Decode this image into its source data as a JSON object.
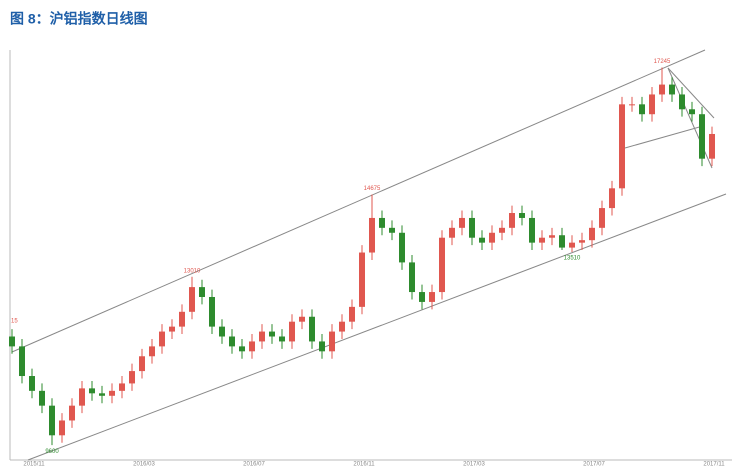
{
  "chart_data": {
    "type": "candlestick",
    "title": "图 8：沪铝指数日线图",
    "categories": [
      null,
      null,
      "2015/11",
      null,
      null,
      null,
      null,
      null,
      null,
      null,
      null,
      null,
      null,
      "2016/03",
      null,
      null,
      null,
      null,
      null,
      null,
      null,
      null,
      null,
      null,
      "2016/07",
      null,
      null,
      null,
      null,
      null,
      null,
      null,
      null,
      null,
      null,
      "2016/11",
      null,
      null,
      null,
      null,
      null,
      null,
      null,
      null,
      null,
      null,
      "2017/03",
      null,
      null,
      null,
      null,
      null,
      null,
      null,
      null,
      null,
      null,
      null,
      "2017/07",
      null,
      null,
      null,
      null,
      null,
      null,
      null,
      null,
      null,
      null,
      null,
      "2017/11"
    ],
    "open": [
      11800,
      11600,
      11000,
      10700,
      10400,
      9800,
      10100,
      10400,
      10750,
      10650,
      10600,
      10700,
      10850,
      11100,
      11400,
      11600,
      11900,
      12000,
      12300,
      12800,
      12600,
      12000,
      11800,
      11600,
      11500,
      11700,
      11900,
      11800,
      11700,
      12100,
      12200,
      11700,
      11500,
      11900,
      12100,
      12400,
      13500,
      14200,
      14000,
      13900,
      13300,
      12700,
      12500,
      12700,
      13800,
      14000,
      14200,
      13800,
      13700,
      13900,
      14000,
      14300,
      14200,
      13700,
      13800,
      13850,
      13600,
      13700,
      13750,
      14000,
      14400,
      14800,
      16500,
      16500,
      16300,
      16700,
      16900,
      16700,
      16400,
      16300,
      15400
    ],
    "high": [
      11950,
      11750,
      11150,
      10850,
      10550,
      10250,
      10550,
      10900,
      10900,
      10800,
      10850,
      11000,
      11250,
      11550,
      11750,
      12050,
      12150,
      12450,
      13010,
      12950,
      12750,
      12150,
      11950,
      11750,
      11850,
      12050,
      12050,
      11950,
      12250,
      12350,
      12350,
      11850,
      12050,
      12250,
      12550,
      13650,
      14675,
      14350,
      14150,
      14050,
      13450,
      12850,
      12850,
      13950,
      14150,
      14350,
      14350,
      13950,
      14050,
      14150,
      14450,
      14450,
      14350,
      13950,
      14000,
      14000,
      13850,
      13900,
      14150,
      14550,
      14950,
      16650,
      16650,
      16650,
      16850,
      17245,
      17050,
      16850,
      16550,
      16450,
      16050
    ],
    "low": [
      11450,
      10850,
      10550,
      10250,
      9600,
      9650,
      9950,
      10250,
      10500,
      10450,
      10450,
      10550,
      10700,
      10950,
      11250,
      11450,
      11750,
      11850,
      12150,
      12450,
      11850,
      11650,
      11450,
      11350,
      11350,
      11550,
      11650,
      11550,
      11550,
      11950,
      11550,
      11350,
      11350,
      11750,
      11950,
      12250,
      13350,
      13850,
      13750,
      13150,
      12550,
      12350,
      12350,
      12550,
      13650,
      13850,
      13650,
      13550,
      13550,
      13750,
      13850,
      14050,
      13550,
      13550,
      13650,
      13550,
      13510,
      13550,
      13600,
      13850,
      14250,
      14650,
      16350,
      16150,
      16150,
      16550,
      16550,
      16250,
      16150,
      15250,
      15250
    ],
    "close": [
      11600,
      11000,
      10700,
      10400,
      9800,
      10100,
      10400,
      10750,
      10650,
      10600,
      10700,
      10850,
      11100,
      11400,
      11600,
      11900,
      12000,
      12300,
      12800,
      12600,
      12000,
      11800,
      11600,
      11500,
      11700,
      11900,
      11800,
      11700,
      12100,
      12200,
      11700,
      11500,
      11900,
      12100,
      12400,
      13500,
      14200,
      14000,
      13900,
      13300,
      12700,
      12500,
      12700,
      13800,
      14000,
      14200,
      13800,
      13700,
      13900,
      14000,
      14300,
      14200,
      13700,
      13800,
      13850,
      13600,
      13700,
      13750,
      14000,
      14400,
      14800,
      16500,
      16500,
      16300,
      16700,
      16900,
      16700,
      16400,
      16300,
      15400,
      15900
    ],
    "up_color": "#e0574f",
    "down_color": "#2e8b2e",
    "annotations": [
      "15",
      9600,
      13010,
      14675,
      13510,
      17245
    ],
    "ylim": [
      9300,
      17600
    ]
  }
}
